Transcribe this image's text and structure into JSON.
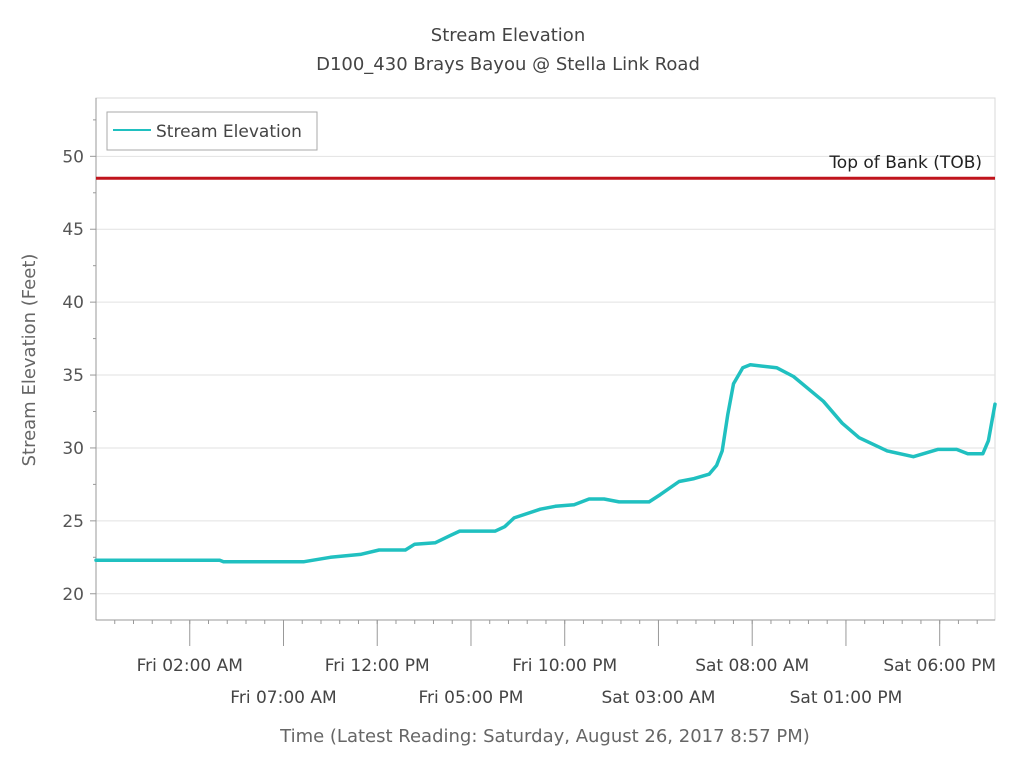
{
  "chart_data": {
    "type": "line",
    "title": "Stream Elevation",
    "subtitle": "D100_430 Brays Bayou @ Stella Link Road",
    "xlabel": "Time (Latest Reading: Saturday, August 26, 2017 8:57 PM)",
    "ylabel": "Stream Elevation (Feet)",
    "xlim": [
      "2017-08-24 21:00",
      "2017-08-26 20:57"
    ],
    "ylim": [
      18.2,
      54
    ],
    "yticks": [
      20,
      25,
      30,
      35,
      40,
      45,
      50
    ],
    "xticks": [
      {
        "t": "2017-08-25 02:00",
        "label": "Fri 02:00 AM"
      },
      {
        "t": "2017-08-25 07:00",
        "label": "Fri 07:00 AM"
      },
      {
        "t": "2017-08-25 12:00",
        "label": "Fri 12:00 PM"
      },
      {
        "t": "2017-08-25 17:00",
        "label": "Fri 05:00 PM"
      },
      {
        "t": "2017-08-25 22:00",
        "label": "Fri 10:00 PM"
      },
      {
        "t": "2017-08-26 03:00",
        "label": "Sat 03:00 AM"
      },
      {
        "t": "2017-08-26 08:00",
        "label": "Sat 08:00 AM"
      },
      {
        "t": "2017-08-26 13:00",
        "label": "Sat 01:00 PM"
      },
      {
        "t": "2017-08-26 18:00",
        "label": "Sat 06:00 PM"
      }
    ],
    "grid": true,
    "legend_position": "top-left",
    "series": [
      {
        "name": "Stream Elevation",
        "color": "#20c0c0",
        "points": [
          [
            "2017-08-24 21:00",
            22.3
          ],
          [
            "2017-08-25 03:36",
            22.3
          ],
          [
            "2017-08-25 03:48",
            22.2
          ],
          [
            "2017-08-25 08:06",
            22.2
          ],
          [
            "2017-08-25 09:30",
            22.5
          ],
          [
            "2017-08-25 11:06",
            22.7
          ],
          [
            "2017-08-25 12:06",
            23.0
          ],
          [
            "2017-08-25 13:30",
            23.0
          ],
          [
            "2017-08-25 14:00",
            23.4
          ],
          [
            "2017-08-25 15:06",
            23.5
          ],
          [
            "2017-08-25 15:54",
            24.0
          ],
          [
            "2017-08-25 16:24",
            24.3
          ],
          [
            "2017-08-25 18:18",
            24.3
          ],
          [
            "2017-08-25 18:48",
            24.6
          ],
          [
            "2017-08-25 19:18",
            25.2
          ],
          [
            "2017-08-25 20:42",
            25.8
          ],
          [
            "2017-08-25 21:30",
            26.0
          ],
          [
            "2017-08-25 22:30",
            26.1
          ],
          [
            "2017-08-25 23:18",
            26.5
          ],
          [
            "2017-08-26 00:06",
            26.5
          ],
          [
            "2017-08-26 00:54",
            26.3
          ],
          [
            "2017-08-26 02:30",
            26.3
          ],
          [
            "2017-08-26 03:06",
            26.8
          ],
          [
            "2017-08-26 04:06",
            27.7
          ],
          [
            "2017-08-26 04:54",
            27.9
          ],
          [
            "2017-08-26 05:42",
            28.2
          ],
          [
            "2017-08-26 06:06",
            28.8
          ],
          [
            "2017-08-26 06:24",
            29.8
          ],
          [
            "2017-08-26 06:42",
            32.3
          ],
          [
            "2017-08-26 07:00",
            34.4
          ],
          [
            "2017-08-26 07:30",
            35.5
          ],
          [
            "2017-08-26 07:54",
            35.7
          ],
          [
            "2017-08-26 09:18",
            35.5
          ],
          [
            "2017-08-26 10:12",
            34.9
          ],
          [
            "2017-08-26 11:48",
            33.2
          ],
          [
            "2017-08-26 12:48",
            31.7
          ],
          [
            "2017-08-26 13:42",
            30.7
          ],
          [
            "2017-08-26 15:12",
            29.8
          ],
          [
            "2017-08-26 16:36",
            29.4
          ],
          [
            "2017-08-26 17:54",
            29.9
          ],
          [
            "2017-08-26 18:54",
            29.9
          ],
          [
            "2017-08-26 19:30",
            29.6
          ],
          [
            "2017-08-26 20:18",
            29.6
          ],
          [
            "2017-08-26 20:36",
            30.5
          ],
          [
            "2017-08-26 20:57",
            33.0
          ]
        ]
      }
    ],
    "reference_lines": [
      {
        "label": "Top of Bank (TOB)",
        "value": 48.5,
        "color": "#c0141c"
      }
    ]
  }
}
